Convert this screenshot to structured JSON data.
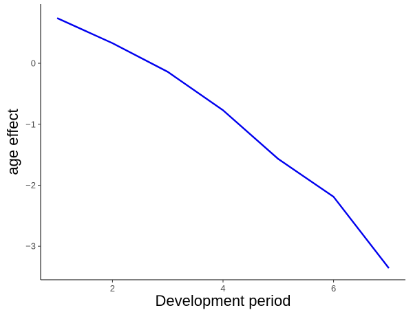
{
  "chart_data": {
    "type": "line",
    "title": "",
    "xlabel": "Development period",
    "ylabel": "age effect",
    "xlim": [
      0.7,
      7.3
    ],
    "ylim": [
      -3.55,
      0.97
    ],
    "xticks": [
      2,
      4,
      6
    ],
    "yticks": [
      0,
      -1,
      -2,
      -3
    ],
    "xtick_labels": [
      "2",
      "4",
      "6"
    ],
    "ytick_labels": [
      "0",
      "−1",
      "−2",
      "−3"
    ],
    "grid": false,
    "legend": "none",
    "series": [
      {
        "color": "#0000ee",
        "x": [
          1,
          2,
          3,
          4,
          5,
          6,
          7
        ],
        "y": [
          0.74,
          0.33,
          -0.14,
          -0.77,
          -1.57,
          -2.19,
          -3.36
        ]
      }
    ]
  }
}
